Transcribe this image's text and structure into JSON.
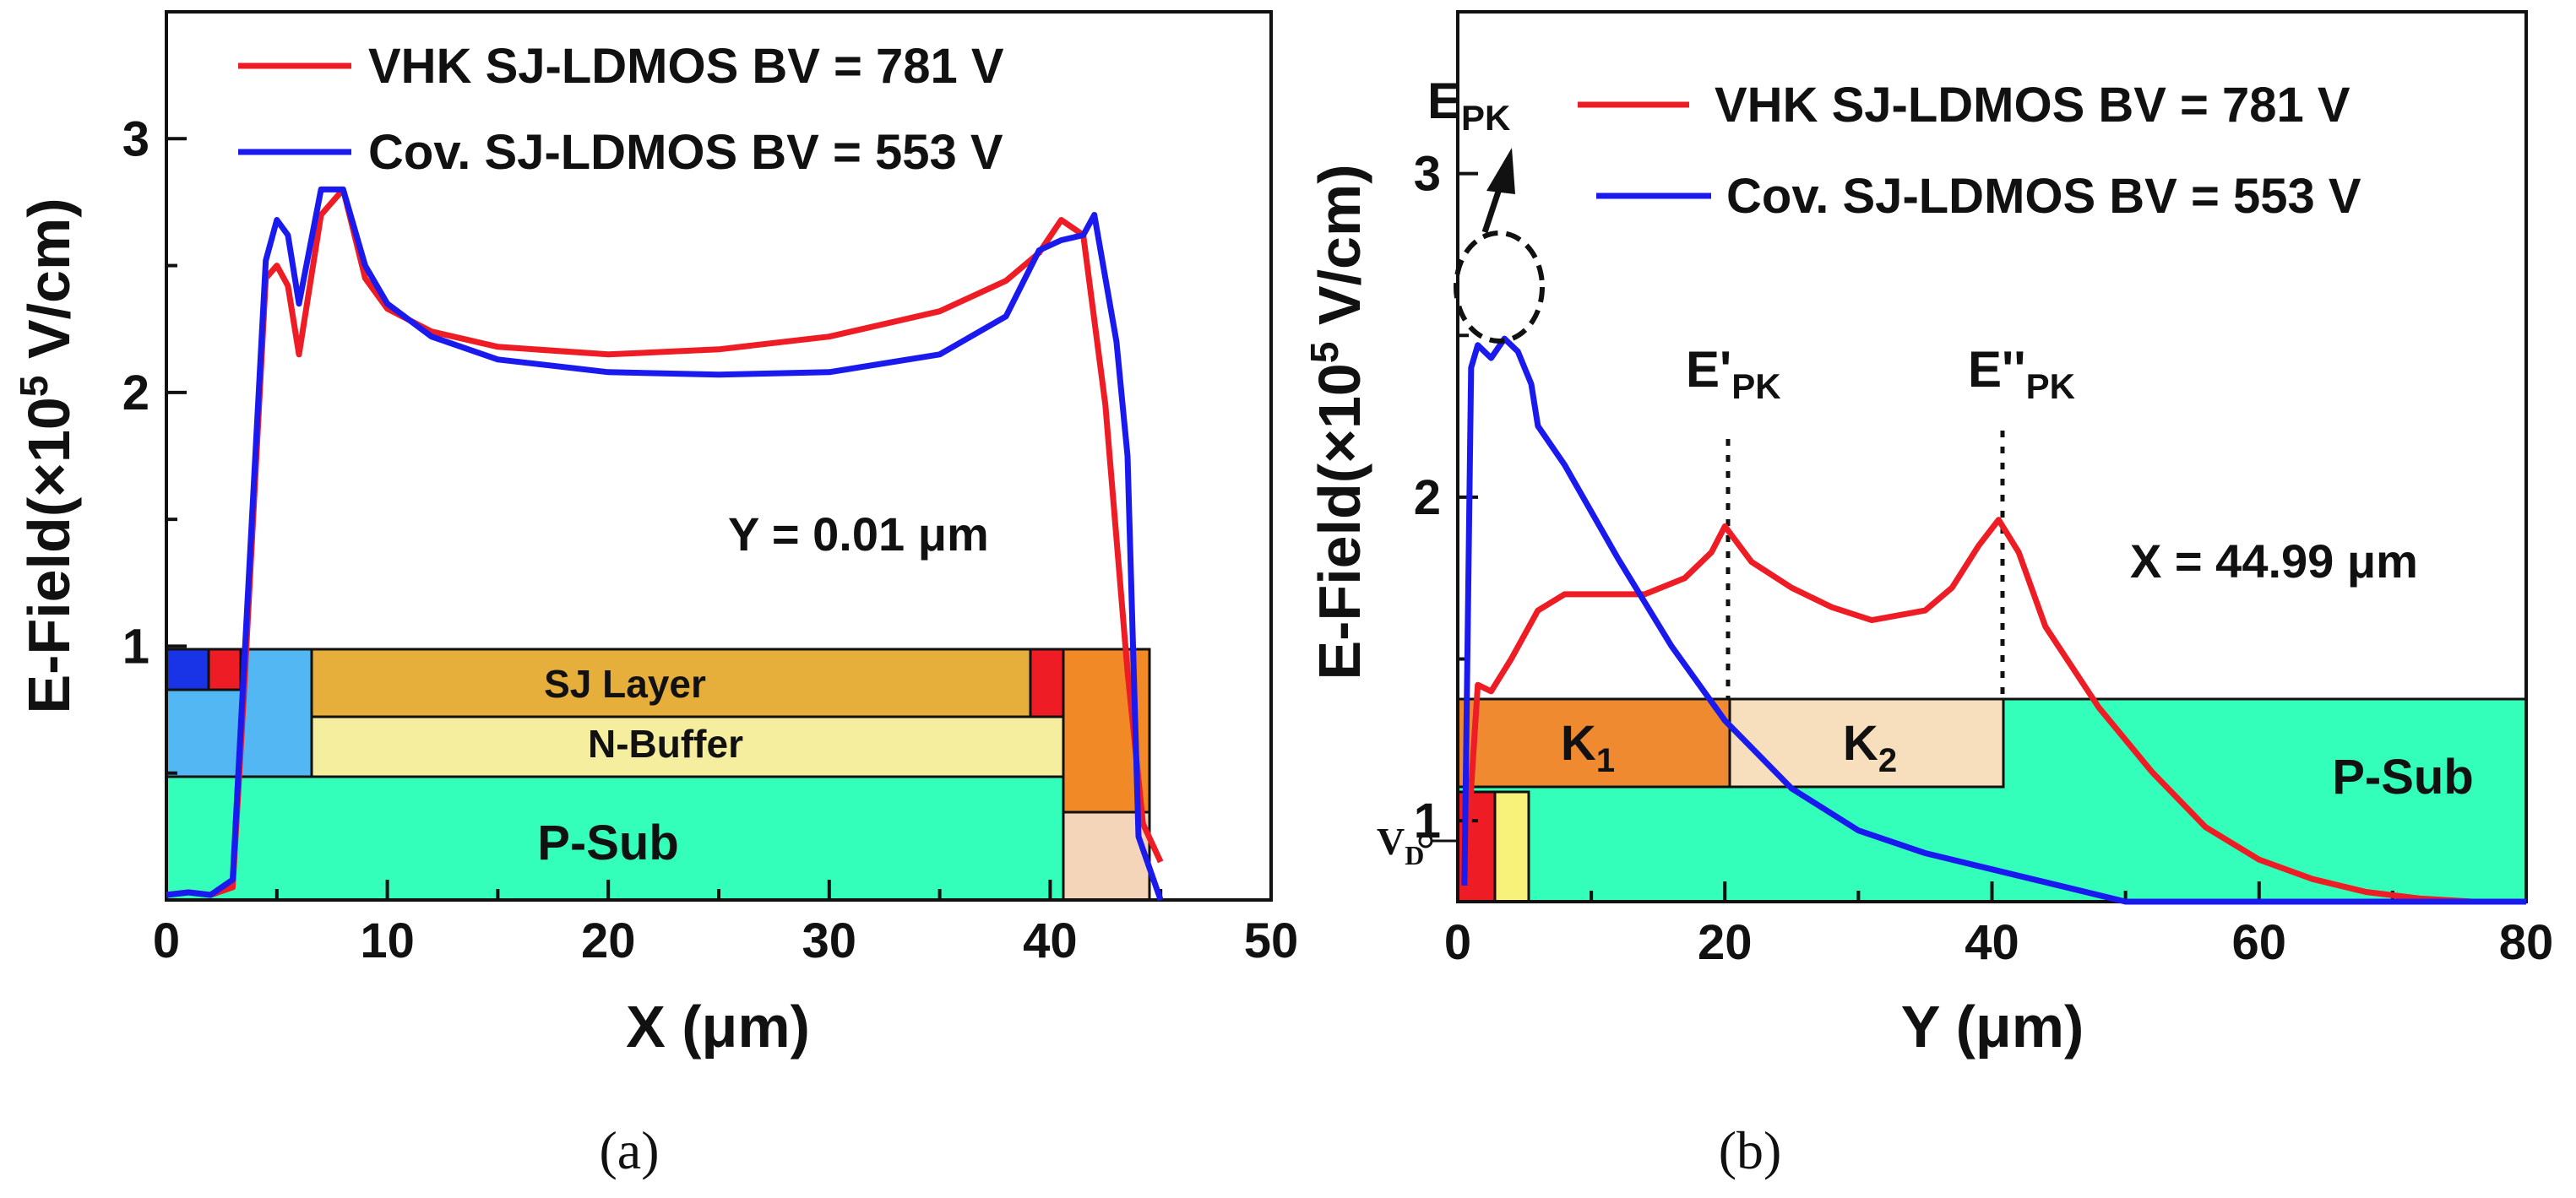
{
  "chart_data": [
    {
      "type": "line",
      "panel": "(a)",
      "xlabel": "X (μm)",
      "ylabel_parts": [
        "E-Field(×10",
        "5",
        " V/cm)"
      ],
      "xlim": [
        0,
        50
      ],
      "ylim": [
        0,
        3.5
      ],
      "xticks": [
        0,
        10,
        20,
        30,
        40,
        50
      ],
      "yticks": [
        1,
        2,
        3
      ],
      "annotation": "Y = 0.01 μm",
      "regions": {
        "sj": "SJ Layer",
        "nbuffer": "N-Buffer",
        "psub": "P-Sub"
      },
      "series": [
        {
          "name": "VHK SJ-LDMOS BV = 781 V",
          "color": "#ee1c24",
          "x": [
            0,
            1,
            2,
            3,
            3.5,
            4.5,
            5,
            5.5,
            6,
            7,
            8,
            9,
            10,
            12,
            15,
            20,
            25,
            30,
            35,
            38,
            39.5,
            40.5,
            41.5,
            42.5,
            43.5,
            44.2,
            45
          ],
          "y": [
            0.02,
            0.03,
            0.02,
            0.05,
            0.8,
            2.45,
            2.5,
            2.42,
            2.15,
            2.7,
            2.8,
            2.45,
            2.33,
            2.24,
            2.18,
            2.15,
            2.17,
            2.22,
            2.32,
            2.44,
            2.55,
            2.68,
            2.62,
            1.95,
            0.9,
            0.3,
            0.15
          ]
        },
        {
          "name": "Cov. SJ-LDMOS BV = 553 V",
          "color": "#1a1aee",
          "x": [
            0,
            1,
            2,
            3,
            3.5,
            4.5,
            5,
            5.5,
            6,
            7,
            8,
            9,
            10,
            12,
            15,
            20,
            25,
            30,
            35,
            38,
            39.5,
            40.5,
            41.5,
            42,
            43,
            43.5,
            44,
            45
          ],
          "y": [
            0.02,
            0.03,
            0.02,
            0.08,
            0.9,
            2.52,
            2.68,
            2.62,
            2.35,
            2.8,
            2.8,
            2.5,
            2.35,
            2.22,
            2.13,
            2.08,
            2.07,
            2.08,
            2.15,
            2.3,
            2.56,
            2.6,
            2.62,
            2.7,
            2.2,
            1.75,
            0.25,
            0.0
          ]
        }
      ]
    },
    {
      "type": "line",
      "panel": "(b)",
      "xlabel": "Y (μm)",
      "ylabel_parts": [
        "E-Field(×10",
        "5",
        " V/cm)"
      ],
      "xlim": [
        0,
        80
      ],
      "ylim": [
        0.75,
        3.5
      ],
      "xticks": [
        0,
        20,
        40,
        60,
        80
      ],
      "yticks": [
        1,
        2,
        3
      ],
      "annotation": "X = 44.99 μm",
      "peak_labels": [
        {
          "main": "E",
          "sub": "PK"
        },
        {
          "main": "E'",
          "sub": "PK"
        },
        {
          "main": "E''",
          "sub": "PK"
        }
      ],
      "regions": {
        "k1": "K",
        "k1_sub": "1",
        "k2": "K",
        "k2_sub": "2",
        "psub": "P-Sub",
        "vd": "V",
        "vd_sub": "D"
      },
      "series": [
        {
          "name": "VHK SJ-LDMOS BV = 781 V",
          "color": "#ee1c24",
          "x": [
            0.5,
            1.5,
            2.5,
            4,
            6,
            8,
            10,
            14,
            17,
            19,
            20,
            22,
            25,
            28,
            31,
            35,
            37,
            39,
            40.5,
            42,
            44,
            48,
            52,
            56,
            60,
            64,
            68,
            72,
            76,
            80
          ],
          "y": [
            0.78,
            1.42,
            1.4,
            1.5,
            1.65,
            1.7,
            1.7,
            1.7,
            1.75,
            1.83,
            1.91,
            1.8,
            1.72,
            1.66,
            1.62,
            1.65,
            1.72,
            1.85,
            1.93,
            1.83,
            1.6,
            1.35,
            1.15,
            0.98,
            0.88,
            0.82,
            0.78,
            0.76,
            0.75,
            0.75
          ]
        },
        {
          "name": "Cov. SJ-LDMOS BV = 553 V",
          "color": "#1a1aee",
          "x": [
            0.5,
            1,
            1.5,
            2.5,
            3.5,
            4.5,
            5.5,
            6,
            8,
            12,
            16,
            20,
            25,
            30,
            35,
            40,
            45,
            48,
            50,
            52,
            60,
            70,
            80
          ],
          "y": [
            0.8,
            2.4,
            2.47,
            2.43,
            2.49,
            2.45,
            2.35,
            2.22,
            2.1,
            1.81,
            1.54,
            1.31,
            1.1,
            0.97,
            0.9,
            0.85,
            0.8,
            0.77,
            0.75,
            0.75,
            0.75,
            0.75,
            0.75
          ]
        }
      ]
    }
  ],
  "captions": [
    "(a)",
    "(b)"
  ]
}
